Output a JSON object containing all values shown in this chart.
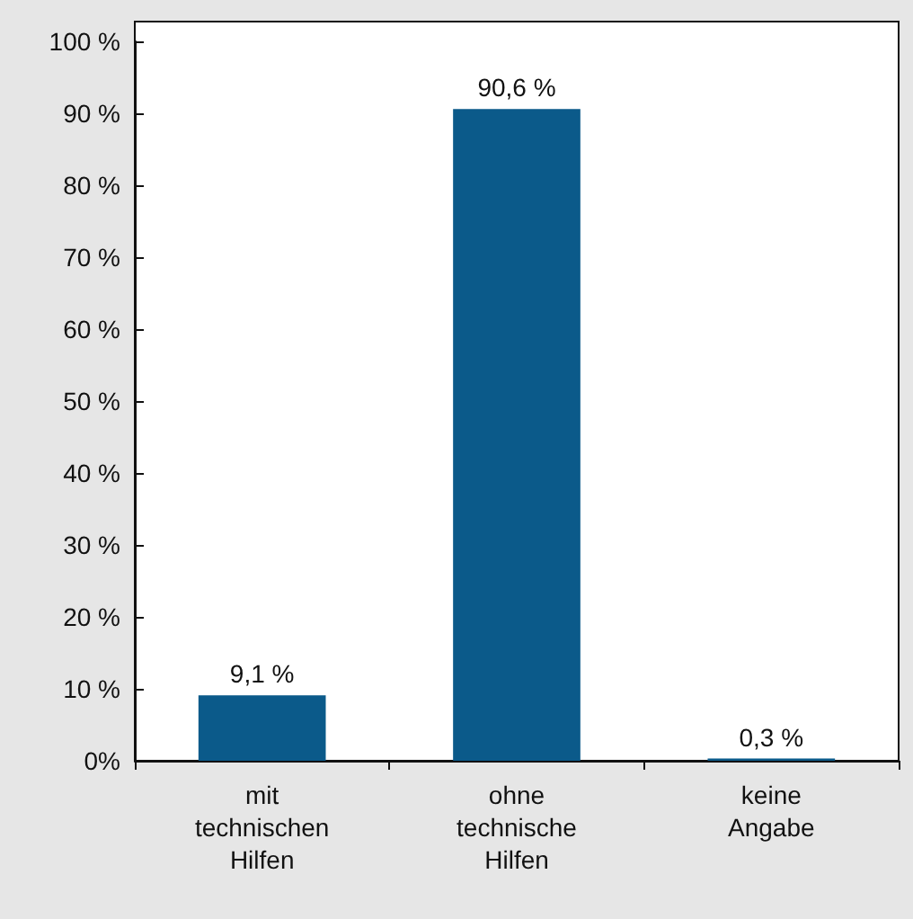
{
  "chart_data": {
    "type": "bar",
    "categories": [
      "mit\ntechnischen\nHilfen",
      "ohne\ntechnische\nHilfen",
      "keine\nAngabe"
    ],
    "values": [
      9.1,
      90.6,
      0.3
    ],
    "value_labels": [
      "9,1 %",
      "90,6 %",
      "0,3 %"
    ],
    "color": "#0b5a8a",
    "ylim": [
      0,
      100
    ],
    "yticks": [
      {
        "value": 0,
        "label": "0%"
      },
      {
        "value": 10,
        "label": "10 %"
      },
      {
        "value": 20,
        "label": "20 %"
      },
      {
        "value": 30,
        "label": "30 %"
      },
      {
        "value": 40,
        "label": "40 %"
      },
      {
        "value": 50,
        "label": "50 %"
      },
      {
        "value": 60,
        "label": "60 %"
      },
      {
        "value": 70,
        "label": "70 %"
      },
      {
        "value": 80,
        "label": "80 %"
      },
      {
        "value": 90,
        "label": "90 %"
      },
      {
        "value": 100,
        "label": "100 %"
      }
    ],
    "grid": false
  }
}
